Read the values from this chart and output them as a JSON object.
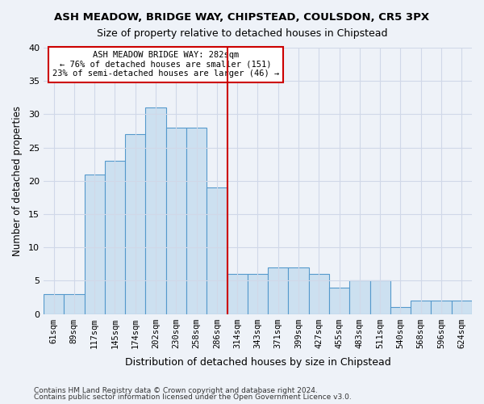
{
  "title1": "ASH MEADOW, BRIDGE WAY, CHIPSTEAD, COULSDON, CR5 3PX",
  "title2": "Size of property relative to detached houses in Chipstead",
  "xlabel": "Distribution of detached houses by size in Chipstead",
  "ylabel": "Number of detached properties",
  "footnote1": "Contains HM Land Registry data © Crown copyright and database right 2024.",
  "footnote2": "Contains public sector information licensed under the Open Government Licence v3.0.",
  "annotation_line1": "ASH MEADOW BRIDGE WAY: 282sqm",
  "annotation_line2": "← 76% of detached houses are smaller (151)",
  "annotation_line3": "23% of semi-detached houses are larger (46) →",
  "bar_color": "#cce0f0",
  "bar_edge_color": "#5599cc",
  "vline_color": "#cc0000",
  "categories": [
    "61sqm",
    "89sqm",
    "117sqm",
    "145sqm",
    "174sqm",
    "202sqm",
    "230sqm",
    "258sqm",
    "286sqm",
    "314sqm",
    "343sqm",
    "371sqm",
    "399sqm",
    "427sqm",
    "455sqm",
    "483sqm",
    "511sqm",
    "540sqm",
    "568sqm",
    "596sqm",
    "624sqm"
  ],
  "values": [
    3,
    3,
    21,
    23,
    27,
    31,
    28,
    28,
    19,
    6,
    6,
    7,
    7,
    6,
    4,
    5,
    5,
    1,
    2,
    2,
    2
  ],
  "vline_index": 8.5,
  "ylim": [
    0,
    40
  ],
  "yticks": [
    0,
    5,
    10,
    15,
    20,
    25,
    30,
    35,
    40
  ],
  "grid_color": "#d0d8e8",
  "bg_color": "#eef2f8"
}
